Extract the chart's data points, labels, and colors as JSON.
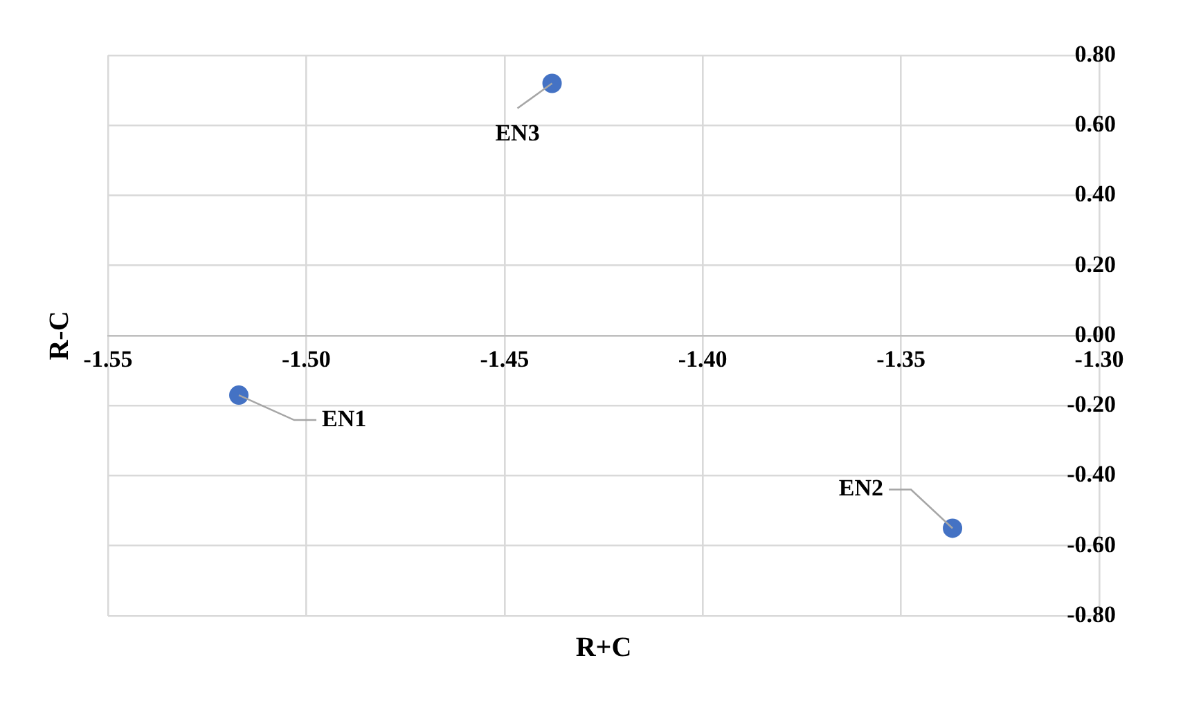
{
  "chart_data": {
    "type": "scatter",
    "xlabel": "R+C",
    "ylabel": "R-C",
    "series": [
      {
        "color": "#4472c4",
        "x": [
          -1.517,
          -1.337,
          -1.438
        ],
        "values": [
          -0.17,
          -0.55,
          0.72
        ]
      }
    ],
    "annotations": [
      {
        "text": "EN1",
        "x": -1.517,
        "y": -0.17
      },
      {
        "text": "EN2",
        "x": -1.337,
        "y": -0.55
      },
      {
        "text": "EN3",
        "x": -1.438,
        "y": 0.72
      }
    ],
    "xlim": [
      -1.55,
      -1.3
    ],
    "xticks": [
      {
        "value": -1.55,
        "label": "-1.55"
      },
      {
        "value": -1.5,
        "label": "-1.50"
      },
      {
        "value": -1.45,
        "label": "-1.45"
      },
      {
        "value": -1.4,
        "label": "-1.40"
      },
      {
        "value": -1.35,
        "label": "-1.35"
      },
      {
        "value": -1.3,
        "label": "-1.30"
      }
    ],
    "ylim": [
      -0.8,
      0.8
    ],
    "yticks": [
      {
        "value": -0.8,
        "label": "-0.80"
      },
      {
        "value": -0.6,
        "label": "-0.60"
      },
      {
        "value": -0.4,
        "label": "-0.40"
      },
      {
        "value": -0.2,
        "label": "-0.20"
      },
      {
        "value": 0,
        "label": "0.00"
      },
      {
        "value": 0.2,
        "label": "0.20"
      },
      {
        "value": 0.4,
        "label": "0.40"
      },
      {
        "value": 0.6,
        "label": "0.60"
      },
      {
        "value": 0.8,
        "label": "0.80"
      }
    ],
    "grid": true,
    "legend": false,
    "marker": "circle"
  }
}
